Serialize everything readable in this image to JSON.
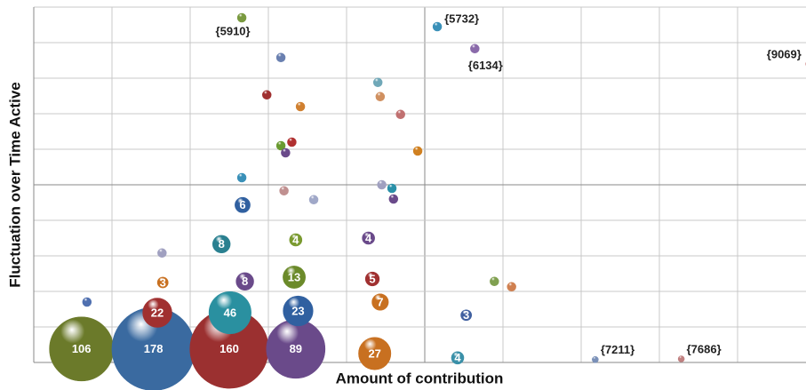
{
  "chart_data": {
    "type": "bubble",
    "xlabel": "Amount of contribution",
    "ylabel": "Fluctuation over Time Active",
    "xlim": [
      0,
      10
    ],
    "ylim": [
      0,
      10
    ],
    "xticks": [
      0,
      1,
      2,
      3,
      4,
      5,
      6,
      7,
      8,
      9,
      10
    ],
    "yticks": [
      0,
      1,
      2,
      3,
      4,
      5,
      6,
      7,
      8,
      9,
      10
    ],
    "grid": true,
    "series": [
      {
        "x": [
          0.61,
          1.53,
          2.5,
          3.35,
          4.36,
          5.42,
          7.18,
          8.28,
          0.68,
          1.58,
          2.51,
          3.38,
          4.43,
          5.53,
          1.65,
          2.7,
          3.33,
          4.33,
          5.89,
          6.11,
          1.64,
          2.4,
          3.35,
          4.28,
          2.67,
          2.66,
          3.2,
          3.58,
          4.45,
          4.58,
          4.6,
          3.16,
          3.3,
          3.22,
          4.91,
          2.98,
          3.41,
          4.43,
          4.4,
          4.69,
          3.16,
          2.66,
          5.16,
          5.64,
          9.93
        ],
        "values": [
          0.38,
          0.38,
          0.38,
          0.38,
          0.25,
          0.13,
          0.08,
          0.1,
          1.7,
          1.4,
          1.4,
          1.45,
          1.7,
          1.33,
          2.25,
          2.28,
          2.4,
          2.35,
          2.28,
          2.13,
          3.08,
          3.33,
          3.45,
          3.5,
          4.43,
          5.2,
          4.83,
          4.58,
          5.0,
          4.9,
          4.6,
          6.1,
          6.2,
          5.9,
          5.95,
          7.53,
          7.2,
          7.48,
          7.88,
          6.98,
          8.58,
          9.7,
          9.45,
          8.83,
          8.4
        ],
        "sizes": [
          106,
          178,
          160,
          89,
          27,
          4,
          1,
          1,
          2,
          22,
          46,
          23,
          7,
          3,
          3,
          8,
          13,
          5,
          2,
          2,
          2,
          8,
          4,
          4,
          6,
          2,
          2,
          2,
          2,
          2,
          2,
          2,
          2,
          2,
          2,
          2,
          2,
          2,
          2,
          2,
          2,
          2,
          2,
          2,
          2
        ],
        "colors": [
          "#6b7a2a",
          "#3a6aa0",
          "#9b3030",
          "#6a4a8a",
          "#c87020",
          "#3a90a8",
          "#7a90b8",
          "#c08080",
          "#5070b0",
          "#a03030",
          "#2a90a0",
          "#3060a0",
          "#c87020",
          "#4060a0",
          "#c87020",
          "#6a4a8a",
          "#6b8a2a",
          "#a03030",
          "#80a050",
          "#d08050",
          "#a0a0c0",
          "#2a8090",
          "#7a9a30",
          "#6a4a8a",
          "#3060a0",
          "#3a90b8",
          "#c09090",
          "#a0a8c8",
          "#a0a0c0",
          "#2a90a8",
          "#6a4a8a",
          "#6a9a30",
          "#b03030",
          "#6a4a8a",
          "#d08020",
          "#a03030",
          "#d08030",
          "#d09060",
          "#70a8b8",
          "#c07070",
          "#6a80b0",
          "#7a9a40",
          "#3a90b8",
          "#8a6aaa",
          "#b04040"
        ],
        "notes": [
          null,
          null,
          null,
          null,
          null,
          null,
          "{7211}",
          "{7686}",
          null,
          null,
          null,
          null,
          null,
          null,
          null,
          null,
          null,
          null,
          null,
          null,
          null,
          null,
          null,
          null,
          null,
          null,
          null,
          null,
          null,
          null,
          null,
          null,
          null,
          null,
          null,
          null,
          null,
          null,
          null,
          null,
          null,
          "{5910}",
          "{5732}",
          "{6134}",
          "{9069}"
        ]
      }
    ]
  }
}
